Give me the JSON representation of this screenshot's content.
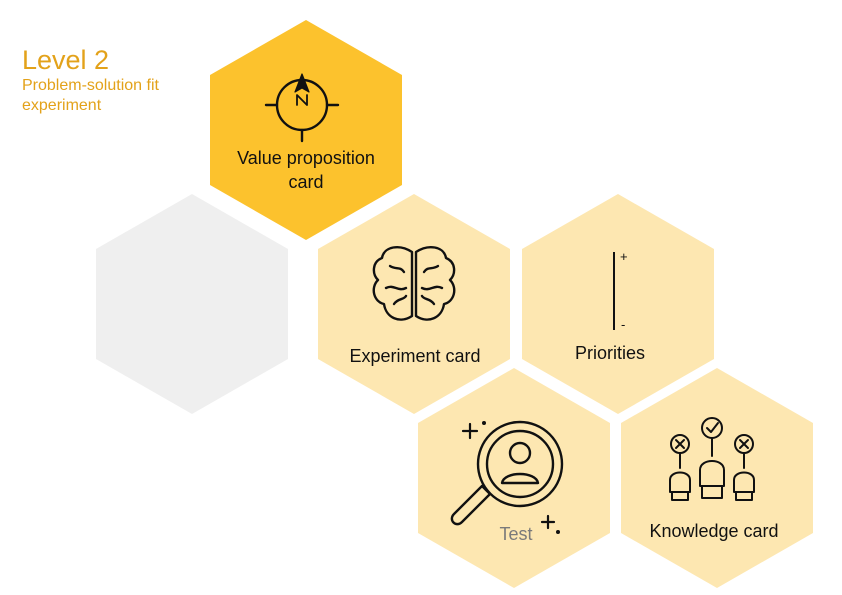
{
  "title": {
    "level": "Level 2",
    "subtitle": "Problem-solution fit experiment"
  },
  "colors": {
    "accent": "#e3a21a",
    "hex_active": "#fcc22d",
    "hex_light": "#fde7b1",
    "hex_empty": "#efefef"
  },
  "hexes": {
    "value_prop": {
      "label_line1": "Value proposition",
      "label_line2": "card",
      "icon": "compass-icon"
    },
    "empty": {
      "icon": ""
    },
    "experiment": {
      "label": "Experiment card",
      "icon": "brain-icon"
    },
    "priorities": {
      "label": "Priorities",
      "icon": "priority-scale-icon",
      "plus": "+",
      "minus": "-"
    },
    "test": {
      "label": "Test",
      "icon": "magnifier-user-icon"
    },
    "knowledge": {
      "label": "Knowledge card",
      "icon": "voting-hands-icon"
    }
  }
}
